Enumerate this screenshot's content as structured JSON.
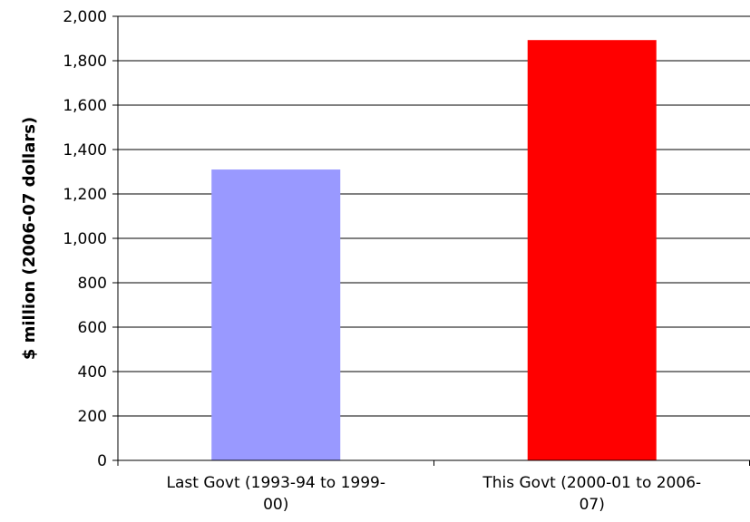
{
  "chart_data": {
    "type": "bar",
    "title": "",
    "xlabel": "",
    "ylabel": "$ million (2006-07 dollars)",
    "ylim": [
      0,
      2000
    ],
    "y_ticks": [
      0,
      200,
      400,
      600,
      800,
      1000,
      1200,
      1400,
      1600,
      1800,
      2000
    ],
    "y_tick_labels": [
      "0",
      "200",
      "400",
      "600",
      "800",
      "1,000",
      "1,200",
      "1,400",
      "1,600",
      "1,800",
      "2,000"
    ],
    "categories": [
      [
        "Last Govt (1993-94 to 1999-",
        "00)"
      ],
      [
        "This Govt (2000-01 to 2006-",
        "07)"
      ]
    ],
    "values": [
      1310,
      1893
    ],
    "colors": [
      "#9999ff",
      "#ff0000"
    ],
    "grid": true,
    "legend": "none"
  }
}
